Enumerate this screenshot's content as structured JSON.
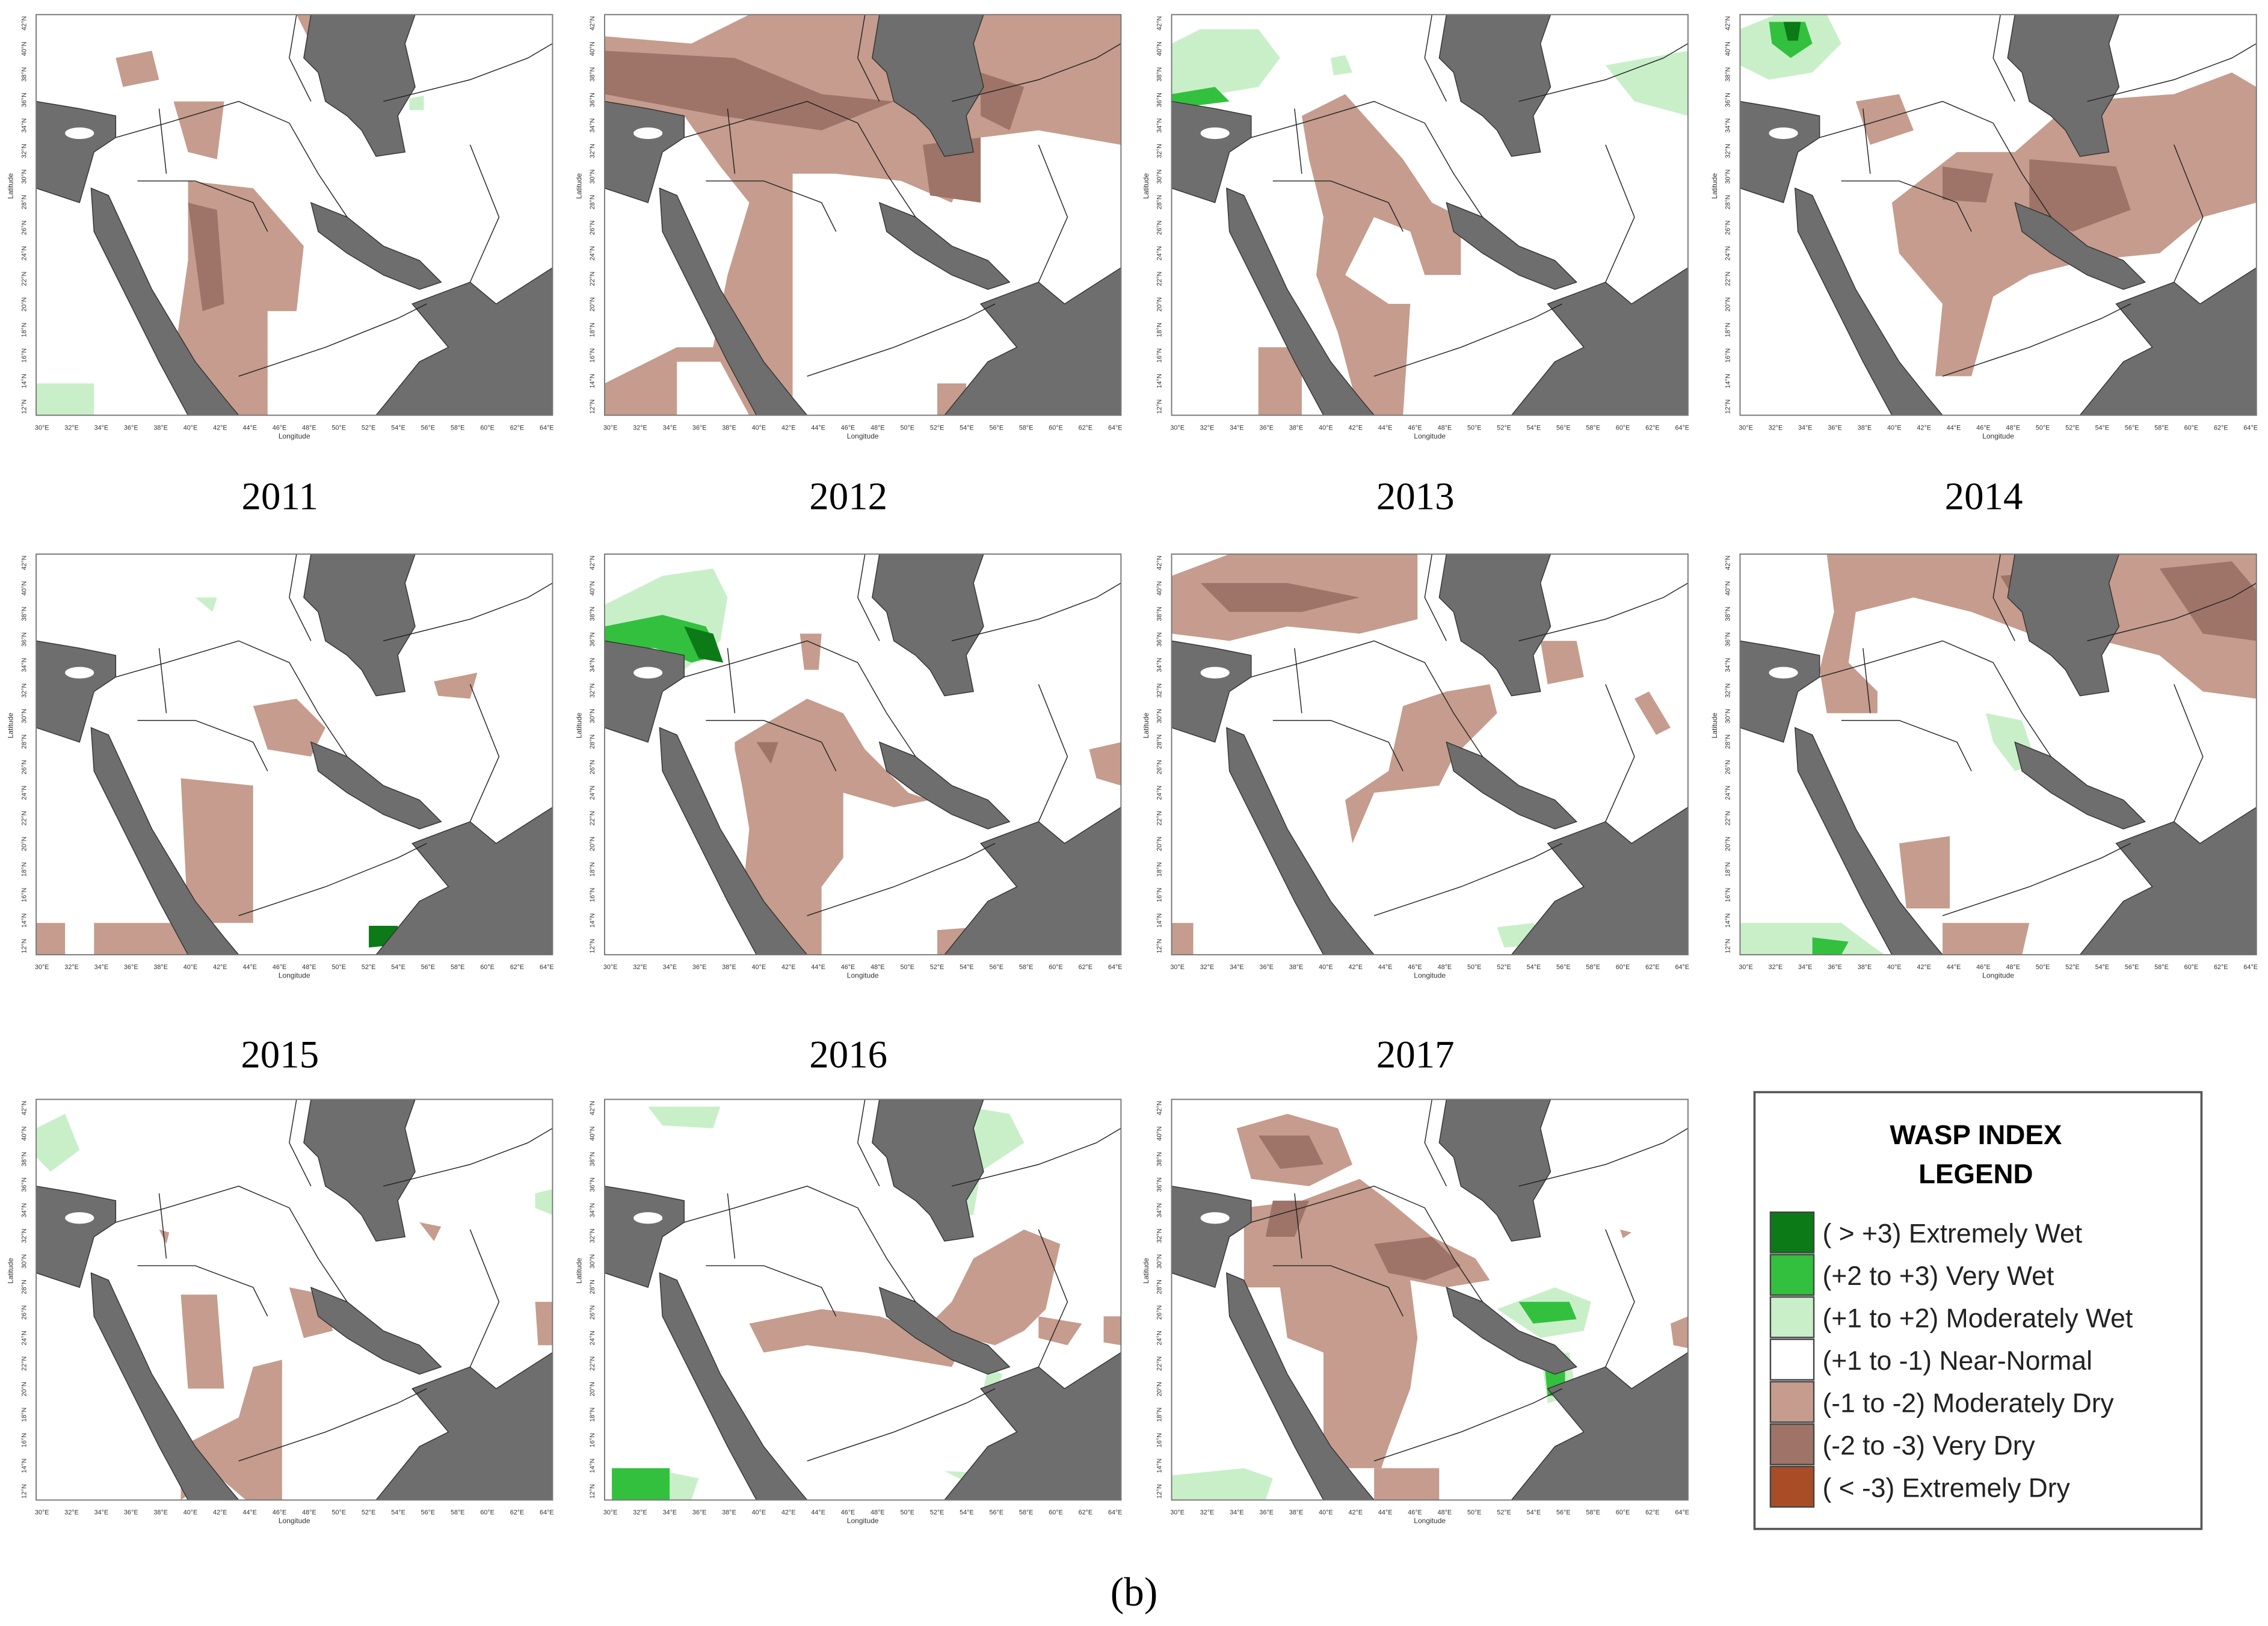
{
  "panel_years": [
    "2011",
    "2012",
    "2013",
    "2014",
    "2015",
    "2016",
    "2017"
  ],
  "map_axes": {
    "x_label": "Longitude",
    "y_label": "Latitude",
    "x_ticks": [
      "30°E",
      "32°E",
      "34°E",
      "36°E",
      "38°E",
      "40°E",
      "42°E",
      "44°E",
      "46°E",
      "48°E",
      "50°E",
      "52°E",
      "54°E",
      "56°E",
      "58°E",
      "60°E",
      "62°E",
      "64°E"
    ],
    "y_ticks": [
      "12°N",
      "14°N",
      "16°N",
      "18°N",
      "20°N",
      "22°N",
      "24°N",
      "26°N",
      "28°N",
      "30°N",
      "32°N",
      "34°N",
      "36°N",
      "38°N",
      "40°N",
      "42°N"
    ]
  },
  "legend": {
    "title_lines": [
      "WASP INDEX",
      "LEGEND"
    ],
    "items": [
      {
        "label": "( > +3) Extremely Wet",
        "color": "#0b7a17"
      },
      {
        "label": "(+2 to +3) Very Wet",
        "color": "#33c03e"
      },
      {
        "label": "(+1 to +2) Moderately Wet",
        "color": "#c9efc9"
      },
      {
        "label": "(+1 to -1) Near-Normal",
        "color": "#ffffff"
      },
      {
        "label": "(-1 to -2) Moderately Dry",
        "color": "#c59c8d"
      },
      {
        "label": "(-2 to -3) Very Dry",
        "color": "#9e7468"
      },
      {
        "label": "( < -3) Extremely Dry",
        "color": "#a84d25"
      }
    ]
  },
  "caption": "(b)"
}
